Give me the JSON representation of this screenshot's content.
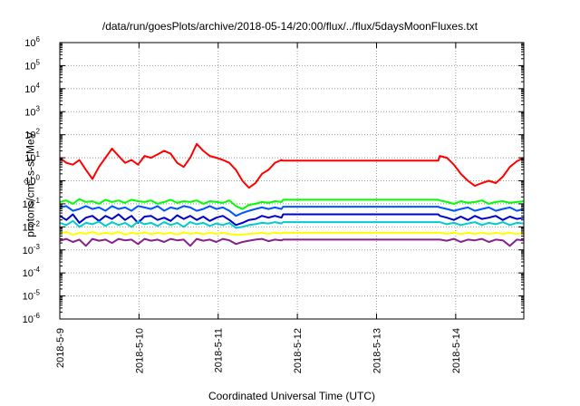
{
  "chart_data": {
    "type": "line",
    "title": "/data/run/goesPlots/archive/2018-05-14/20:00/flux/../flux/5daysMoonFluxes.txt",
    "xlabel": "Coordinated Universal Time (UTC)",
    "ylabel_prefix": "protons/cm",
    "ylabel_sup": "2",
    "ylabel_suffix": "-s-sr-MeV",
    "y_scale": "log",
    "ylim_exp": [
      -6,
      6
    ],
    "ytick_base": "10",
    "ytick_exponents": [
      "-6",
      "-5",
      "-4",
      "-3",
      "-2",
      "-1",
      "0",
      "1",
      "2",
      "3",
      "4",
      "5",
      "6"
    ],
    "xlim_days": [
      0,
      5.86
    ],
    "xtick_labels": [
      "2018-5-9",
      "2018-5-10",
      "2018-5-11",
      "2018-5-12",
      "2018-5-13",
      "2018-5-14"
    ],
    "grid": true,
    "legend": "none",
    "gap_days": [
      2.8,
      4.8
    ],
    "series": [
      {
        "color": "#ff0000",
        "level": 7.5,
        "pre": [
          10,
          6,
          5,
          8,
          3,
          1.2,
          4,
          10,
          25,
          12,
          6,
          8,
          5,
          12,
          10,
          14,
          20,
          15,
          6,
          4,
          10,
          40,
          20,
          12,
          10,
          8,
          6,
          3,
          1,
          0.5,
          0.8,
          2,
          3,
          6,
          8
        ],
        "post": [
          12,
          10,
          5,
          2,
          1,
          0.6,
          0.8,
          1.0,
          0.8,
          1.5,
          4,
          7,
          10
        ]
      },
      {
        "color": "#00ff00",
        "level": 0.15,
        "pre": [
          0.12,
          0.14,
          0.1,
          0.16,
          0.12,
          0.13,
          0.1,
          0.15,
          0.12,
          0.14,
          0.11,
          0.15,
          0.13,
          0.12,
          0.14,
          0.1,
          0.12,
          0.15,
          0.11,
          0.13,
          0.12,
          0.14,
          0.1,
          0.13,
          0.12,
          0.11,
          0.14,
          0.08,
          0.06,
          0.09,
          0.1,
          0.12,
          0.11,
          0.13,
          0.12
        ],
        "post": [
          0.14,
          0.12,
          0.1,
          0.13,
          0.11,
          0.12,
          0.14,
          0.1,
          0.12,
          0.13,
          0.11,
          0.12,
          0.13
        ]
      },
      {
        "color": "#0055ff",
        "level": 0.075,
        "pre": [
          0.07,
          0.08,
          0.05,
          0.06,
          0.08,
          0.06,
          0.07,
          0.05,
          0.08,
          0.06,
          0.07,
          0.05,
          0.08,
          0.07,
          0.06,
          0.08,
          0.05,
          0.07,
          0.06,
          0.08,
          0.07,
          0.05,
          0.06,
          0.08,
          0.06,
          0.07,
          0.05,
          0.03,
          0.04,
          0.05,
          0.06,
          0.07,
          0.06,
          0.07,
          0.06
        ],
        "post": [
          0.07,
          0.06,
          0.05,
          0.06,
          0.07,
          0.05,
          0.06,
          0.07,
          0.05,
          0.06,
          0.07,
          0.05,
          0.06
        ]
      },
      {
        "color": "#0000cc",
        "level": 0.035,
        "pre": [
          0.03,
          0.02,
          0.035,
          0.015,
          0.025,
          0.03,
          0.018,
          0.03,
          0.022,
          0.035,
          0.02,
          0.03,
          0.015,
          0.028,
          0.03,
          0.02,
          0.025,
          0.018,
          0.032,
          0.022,
          0.03,
          0.02,
          0.028,
          0.018,
          0.025,
          0.03,
          0.02,
          0.012,
          0.015,
          0.02,
          0.022,
          0.03,
          0.025,
          0.03,
          0.025
        ],
        "post": [
          0.03,
          0.025,
          0.02,
          0.028,
          0.02,
          0.03,
          0.022,
          0.025,
          0.03,
          0.02,
          0.028,
          0.022,
          0.025
        ]
      },
      {
        "color": "#00cccc",
        "level": 0.016,
        "pre": [
          0.015,
          0.012,
          0.018,
          0.01,
          0.015,
          0.013,
          0.017,
          0.011,
          0.016,
          0.012,
          0.015,
          0.01,
          0.017,
          0.013,
          0.015,
          0.011,
          0.016,
          0.012,
          0.015,
          0.01,
          0.016,
          0.013,
          0.015,
          0.011,
          0.014,
          0.012,
          0.015,
          0.009,
          0.01,
          0.012,
          0.013,
          0.015,
          0.014,
          0.016,
          0.014
        ],
        "post": [
          0.016,
          0.013,
          0.015,
          0.012,
          0.014,
          0.016,
          0.012,
          0.015,
          0.013,
          0.016,
          0.012,
          0.015,
          0.014
        ]
      },
      {
        "color": "#ffff00",
        "level": 0.0055,
        "pre": [
          0.005,
          0.006,
          0.0045,
          0.0055,
          0.005,
          0.006,
          0.0048,
          0.0055,
          0.005,
          0.006,
          0.0047,
          0.0055,
          0.005,
          0.0058,
          0.0048,
          0.0056,
          0.005,
          0.0055,
          0.0047,
          0.0058,
          0.005,
          0.0055,
          0.0048,
          0.0056,
          0.005,
          0.0055,
          0.0049,
          0.0045,
          0.0047,
          0.005,
          0.0052,
          0.0055,
          0.005,
          0.0056,
          0.0052
        ],
        "post": [
          0.0055,
          0.005,
          0.0056,
          0.0048,
          0.0055,
          0.005,
          0.0056,
          0.0049,
          0.0055,
          0.005,
          0.0056,
          0.0049,
          0.0055
        ]
      },
      {
        "color": "#882288",
        "level": 0.0028,
        "pre": [
          0.0025,
          0.003,
          0.0022,
          0.0028,
          0.0015,
          0.003,
          0.0025,
          0.0028,
          0.002,
          0.003,
          0.0026,
          0.0028,
          0.0018,
          0.003,
          0.0025,
          0.0028,
          0.0022,
          0.003,
          0.0026,
          0.0028,
          0.0015,
          0.003,
          0.0025,
          0.0028,
          0.0022,
          0.003,
          0.0026,
          0.0018,
          0.0022,
          0.0025,
          0.0028,
          0.003,
          0.0024,
          0.0028,
          0.0026
        ],
        "post": [
          0.0028,
          0.0025,
          0.003,
          0.0022,
          0.0028,
          0.0026,
          0.003,
          0.0022,
          0.0028,
          0.0026,
          0.0015,
          0.0028,
          0.0026
        ]
      }
    ]
  }
}
